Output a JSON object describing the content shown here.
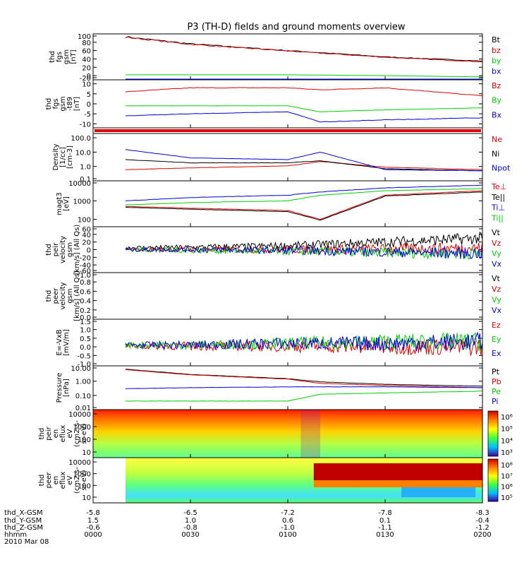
{
  "title": "P3 (TH-D) fields and ground moments overview",
  "colors": {
    "black": "#000000",
    "red": "#e00000",
    "green": "#00d000",
    "blue": "#0000e0"
  },
  "chart_data": [
    {
      "type": "line",
      "ylabel": [
        "thd",
        "fgs",
        "gsm",
        "[nT]"
      ],
      "ylim": [
        -10,
        100
      ],
      "yticks": [
        "100",
        "80",
        "60",
        "40",
        "20",
        "0",
        "-20"
      ],
      "legend": [
        {
          "label": "Bt",
          "color": "black"
        },
        {
          "label": "bz",
          "color": "red"
        },
        {
          "label": "by",
          "color": "green"
        },
        {
          "label": "bx",
          "color": "blue"
        }
      ],
      "x": [
        "0010",
        "0030",
        "0100",
        "0130",
        "0200"
      ],
      "series": [
        {
          "name": "Bt",
          "color": "black",
          "values": [
            93,
            76,
            60,
            45,
            35
          ]
        },
        {
          "name": "bz",
          "color": "red",
          "values": [
            92,
            75,
            59,
            44,
            33
          ]
        },
        {
          "name": "by",
          "color": "green",
          "values": [
            2,
            2,
            2,
            0,
            -3
          ]
        },
        {
          "name": "bx",
          "color": "blue",
          "values": [
            -10,
            -9,
            -9,
            -10,
            -12
          ]
        }
      ]
    },
    {
      "type": "line",
      "ylabel": [
        "thd",
        "fgs",
        "gsm",
        "-t89",
        "[nT]"
      ],
      "ylim": [
        -12,
        12
      ],
      "yticks": [
        "10",
        "5",
        "0",
        "-5",
        "-10"
      ],
      "legend": [
        {
          "label": "Bz",
          "color": "red"
        },
        {
          "label": "By",
          "color": "green"
        },
        {
          "label": "Bx",
          "color": "blue"
        }
      ],
      "x": [
        "0010",
        "0030",
        "0100",
        "0110",
        "0130",
        "0200"
      ],
      "series": [
        {
          "name": "Bz",
          "color": "red",
          "values": [
            6,
            8,
            8,
            7,
            8,
            4
          ]
        },
        {
          "name": "By",
          "color": "green",
          "values": [
            -1,
            -1,
            -1,
            -4,
            -3,
            -2
          ]
        },
        {
          "name": "Bx",
          "color": "blue",
          "values": [
            -6,
            -5,
            -4,
            -9,
            -8,
            -7
          ]
        }
      ]
    },
    {
      "type": "line",
      "ylabel": [
        "Density",
        "[1/cc]",
        "[cm-3]"
      ],
      "yscale": "log",
      "ylim": [
        0.1,
        200
      ],
      "yticks": [
        "100.0",
        "10.0",
        "1.0",
        "0.1"
      ],
      "legend": [
        {
          "label": "Ne",
          "color": "red"
        },
        {
          "label": "Ni",
          "color": "black"
        },
        {
          "label": "Npot",
          "color": "blue"
        }
      ],
      "x": [
        "0010",
        "0030",
        "0100",
        "0110",
        "0130",
        "0200"
      ],
      "series": [
        {
          "name": "Ne",
          "color": "red",
          "values": [
            0.6,
            0.8,
            1.1,
            2.2,
            0.9,
            0.6
          ]
        },
        {
          "name": "Ni",
          "color": "black",
          "values": [
            3.0,
            1.8,
            1.8,
            2.5,
            0.7,
            0.5
          ]
        },
        {
          "name": "Npot",
          "color": "blue",
          "values": [
            15,
            4,
            3,
            10,
            0.6,
            0.5
          ]
        }
      ]
    },
    {
      "type": "line",
      "ylabel": [
        "magt3",
        "[eV]"
      ],
      "yscale": "log",
      "ylim": [
        40,
        12000
      ],
      "yticks": [
        "10000",
        "1000",
        "100"
      ],
      "legend": [
        {
          "label": "Te⊥",
          "color": "red"
        },
        {
          "label": "Te||",
          "color": "black"
        },
        {
          "label": "Ti⊥",
          "color": "blue"
        },
        {
          "label": "Ti||",
          "color": "green"
        }
      ],
      "x": [
        "0010",
        "0030",
        "0100",
        "0110",
        "0130",
        "0200"
      ],
      "series": [
        {
          "name": "Te⊥",
          "color": "red",
          "values": [
            500,
            400,
            300,
            100,
            2000,
            3500
          ]
        },
        {
          "name": "Te||",
          "color": "black",
          "values": [
            450,
            350,
            260,
            90,
            1800,
            3000
          ]
        },
        {
          "name": "Ti⊥",
          "color": "blue",
          "values": [
            1000,
            1500,
            2000,
            3000,
            5000,
            7000
          ]
        },
        {
          "name": "Ti||",
          "color": "green",
          "values": [
            600,
            800,
            1000,
            2000,
            3500,
            4500
          ]
        }
      ]
    },
    {
      "type": "line",
      "ylabel": [
        "thd",
        "peir",
        "velocity",
        "gsm",
        "[km/s] (All Qs)"
      ],
      "ylim": [
        -60,
        60
      ],
      "yticks": [
        "60",
        "40",
        "20",
        "0",
        "-20",
        "-40",
        "-60"
      ],
      "legend": [
        {
          "label": "Vt",
          "color": "black"
        },
        {
          "label": "Vz",
          "color": "red"
        },
        {
          "label": "Vy",
          "color": "green"
        },
        {
          "label": "Vx",
          "color": "blue"
        }
      ],
      "x": [
        "0010",
        "0030",
        "0100",
        "0130",
        "0200"
      ],
      "series": [
        {
          "name": "Vt",
          "color": "black",
          "values": [
            5,
            6,
            10,
            20,
            30
          ]
        },
        {
          "name": "Vz",
          "color": "red",
          "values": [
            0,
            0,
            0,
            2,
            5
          ]
        },
        {
          "name": "Vy",
          "color": "green",
          "values": [
            0,
            -2,
            -4,
            -8,
            -10
          ]
        },
        {
          "name": "Vx",
          "color": "blue",
          "values": [
            0,
            0,
            -2,
            -6,
            -10
          ]
        }
      ]
    },
    {
      "type": "line",
      "ylabel": [
        "thd",
        "peer",
        "velocity",
        "gsm",
        "[km/s] (All Qs)"
      ],
      "ylim": [
        0,
        1
      ],
      "yticks": [
        "1.0",
        "0.8",
        "0.6",
        "0.4",
        "0.2",
        "0.0"
      ],
      "legend": [
        {
          "label": "Vt",
          "color": "black"
        },
        {
          "label": "Vz",
          "color": "red"
        },
        {
          "label": "Vy",
          "color": "green"
        },
        {
          "label": "Vx",
          "color": "blue"
        }
      ],
      "series": []
    },
    {
      "type": "line",
      "ylabel": [
        "E=-VxB",
        "[mV/m]"
      ],
      "ylim": [
        -1.1,
        1.6
      ],
      "yticks": [
        "1.5",
        "1.0",
        "0.5",
        "0.0",
        "-0.5",
        "-1.0"
      ],
      "legend": [
        {
          "label": "Ez",
          "color": "red"
        },
        {
          "label": "Ey",
          "color": "green"
        },
        {
          "label": "Ex",
          "color": "blue"
        }
      ],
      "x": [
        "0010",
        "0030",
        "0100",
        "0130",
        "0200"
      ],
      "series": [
        {
          "name": "Ez",
          "color": "red",
          "values": [
            0.05,
            0.05,
            0.05,
            0.0,
            0.0
          ]
        },
        {
          "name": "Ey",
          "color": "green",
          "values": [
            0.1,
            0.1,
            0.2,
            0.3,
            0.3
          ]
        },
        {
          "name": "Ex",
          "color": "blue",
          "values": [
            0.1,
            0.1,
            0.2,
            0.2,
            0.3
          ]
        }
      ]
    },
    {
      "type": "line",
      "ylabel": [
        "Pressure",
        "[nPa]"
      ],
      "yscale": "log",
      "ylim": [
        0.01,
        12
      ],
      "yticks": [
        "10.00",
        "1.00",
        "0.10",
        "0.01"
      ],
      "legend": [
        {
          "label": "Pt",
          "color": "black"
        },
        {
          "label": "Pb",
          "color": "red"
        },
        {
          "label": "Pe",
          "color": "green"
        },
        {
          "label": "Pi",
          "color": "blue"
        }
      ],
      "x": [
        "0010",
        "0030",
        "0100",
        "0110",
        "0130",
        "0200"
      ],
      "series": [
        {
          "name": "Pt",
          "color": "black",
          "values": [
            7,
            3,
            1.5,
            0.9,
            0.6,
            0.45
          ]
        },
        {
          "name": "Pb",
          "color": "red",
          "values": [
            6.5,
            2.8,
            1.4,
            0.7,
            0.5,
            0.35
          ]
        },
        {
          "name": "Pe",
          "color": "green",
          "values": [
            0.04,
            0.04,
            0.04,
            0.12,
            0.15,
            0.2
          ]
        },
        {
          "name": "Pi",
          "color": "blue",
          "values": [
            0.3,
            0.35,
            0.4,
            0.4,
            0.4,
            0.35
          ]
        }
      ]
    },
    {
      "type": "heatmap",
      "ylabel": [
        "thd",
        "peir",
        "en",
        "eflux",
        "eV",
        "(cm2-s-",
        "sr-eV)"
      ],
      "yticks": [
        "10000",
        "1000",
        "100",
        "10"
      ],
      "colorbar_ticks": [
        "10⁶",
        "10⁵",
        "10⁴",
        "10³"
      ]
    },
    {
      "type": "heatmap",
      "ylabel": [
        "thd",
        "peer",
        "en",
        "eflux",
        "eV",
        "(cm2-s-",
        "sr-eV)"
      ],
      "yticks": [
        "10000",
        "1000",
        "100",
        "10"
      ],
      "colorbar_ticks": [
        "10⁸",
        "10⁷",
        "10⁶",
        "10⁵"
      ]
    }
  ],
  "xaxis": {
    "ticks": [
      {
        "row1": "-5.8",
        "row2": "1.5",
        "row3": "-0.6",
        "row4": "0000"
      },
      {
        "row1": "-6.5",
        "row2": "1.0",
        "row3": "-0.8",
        "row4": "0030"
      },
      {
        "row1": "-7.2",
        "row2": "0.6",
        "row3": "-1.0",
        "row4": "0100"
      },
      {
        "row1": "-7.8",
        "row2": "0.1",
        "row3": "-1.1",
        "row4": "0130"
      },
      {
        "row1": "-8.3",
        "row2": "-0.4",
        "row3": "-1.2",
        "row4": "0200"
      }
    ],
    "row_labels": [
      "thd_X-GSM",
      "thd_Y-GSM",
      "thd_Z-GSM",
      "hhmm",
      "2010 Mar 08"
    ]
  }
}
